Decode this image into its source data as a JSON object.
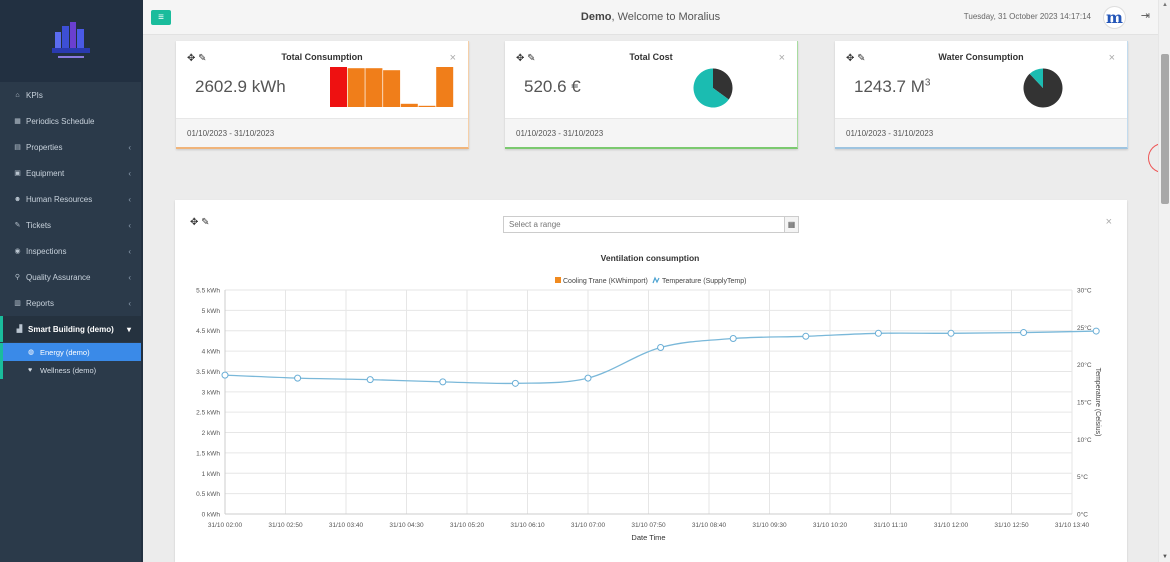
{
  "header": {
    "welcome_name": "Demo",
    "welcome_text": ", Welcome to Moralius",
    "datetime": "Tuesday, 31 October 2023 14:17:14",
    "avatar_letter": "m"
  },
  "sidebar": {
    "items": [
      {
        "icon": "home-icon",
        "glyph": "⌂",
        "label": "KPIs"
      },
      {
        "icon": "calendar-icon",
        "glyph": "▦",
        "label": "Periodics Schedule"
      },
      {
        "icon": "building-icon",
        "glyph": "▤",
        "label": "Properties"
      },
      {
        "icon": "equipment-icon",
        "glyph": "▣",
        "label": "Equipment"
      },
      {
        "icon": "users-icon",
        "glyph": "☻",
        "label": "Human Resources"
      },
      {
        "icon": "ticket-icon",
        "glyph": "✎",
        "label": "Tickets"
      },
      {
        "icon": "inspection-icon",
        "glyph": "◉",
        "label": "Inspections"
      },
      {
        "icon": "quality-icon",
        "glyph": "⚲",
        "label": "Quality Assurance"
      },
      {
        "icon": "reports-icon",
        "glyph": "▥",
        "label": "Reports"
      }
    ],
    "smart_building": {
      "glyph": "▟",
      "label": "Smart Building (demo)"
    },
    "sub_items": [
      {
        "glyph": "◍",
        "label": "Energy (demo)"
      },
      {
        "glyph": "♥",
        "label": "Wellness (demo)"
      }
    ]
  },
  "cards": {
    "consumption": {
      "title": "Total Consumption",
      "value": "2602.9 kWh",
      "period": "01/10/2023 - 31/10/2023"
    },
    "cost": {
      "title": "Total Cost",
      "value": "520.6 €",
      "period": "01/10/2023 - 31/10/2023"
    },
    "water": {
      "title": "Water Consumption",
      "value": "1243.7 M",
      "value_sup": "3",
      "period": "01/10/2023 - 31/10/2023"
    }
  },
  "chart_panel": {
    "range_placeholder": "Select a range"
  },
  "chart_data": {
    "type": "line",
    "title": "Ventilation consumption",
    "xlabel": "Date Time",
    "ylabel_right": "Temperature (Celsius)",
    "legend": [
      "Cooling Trane (KWhimport)",
      "Temperature (SupplyTemp)"
    ],
    "legend_placement": "top-center",
    "grid": true,
    "y_left_ticks": [
      "0 kWh",
      "0.5 kWh",
      "1 kWh",
      "1.5 kWh",
      "2 kWh",
      "2.5 kWh",
      "3 kWh",
      "3.5 kWh",
      "4 kWh",
      "4.5 kWh",
      "5 kWh",
      "5.5 kWh"
    ],
    "y_right_ticks": [
      "0°C",
      "5°C",
      "10°C",
      "15°C",
      "20°C",
      "25°C",
      "30°C"
    ],
    "y_right_range": [
      0,
      30
    ],
    "x_ticks": [
      "31/10 02:00",
      "31/10 02:50",
      "31/10 03:40",
      "31/10 04:30",
      "31/10 05:20",
      "31/10 06:10",
      "31/10 07:00",
      "31/10 07:50",
      "31/10 08:40",
      "31/10 09:30",
      "31/10 10:20",
      "31/10 11:10",
      "31/10 12:00",
      "31/10 12:50",
      "31/10 13:40"
    ],
    "series": [
      {
        "name": "Temperature (SupplyTemp)",
        "axis": "right",
        "color": "#7ab8d9",
        "x": [
          "31/10 02:00",
          "31/10 03:00",
          "31/10 04:00",
          "31/10 05:00",
          "31/10 06:00",
          "31/10 07:00",
          "31/10 08:00",
          "31/10 09:00",
          "31/10 10:00",
          "31/10 11:00",
          "31/10 12:00",
          "31/10 13:00",
          "31/10 14:00"
        ],
        "values": [
          18.6,
          18.2,
          18.0,
          17.7,
          17.5,
          18.2,
          22.3,
          23.5,
          23.8,
          24.2,
          24.2,
          24.3,
          24.5
        ]
      }
    ]
  },
  "mini_charts": {
    "consumption_bars": [
      {
        "value": 1.0,
        "color": "#ee1111"
      },
      {
        "value": 0.97,
        "color": "#f07e1a"
      },
      {
        "value": 0.97,
        "color": "#f07e1a"
      },
      {
        "value": 0.92,
        "color": "#f07e1a"
      },
      {
        "value": 0.08,
        "color": "#f07e1a"
      },
      {
        "value": 0.03,
        "color": "#f07e1a"
      },
      {
        "value": 1.0,
        "color": "#f07e1a"
      }
    ],
    "cost_pie": {
      "colors": [
        "#333333",
        "#1bbcb1"
      ],
      "values": [
        0.35,
        0.65
      ]
    },
    "water_pie": {
      "colors": [
        "#333333",
        "#1bbcb1"
      ],
      "values": [
        0.88,
        0.12
      ]
    }
  }
}
